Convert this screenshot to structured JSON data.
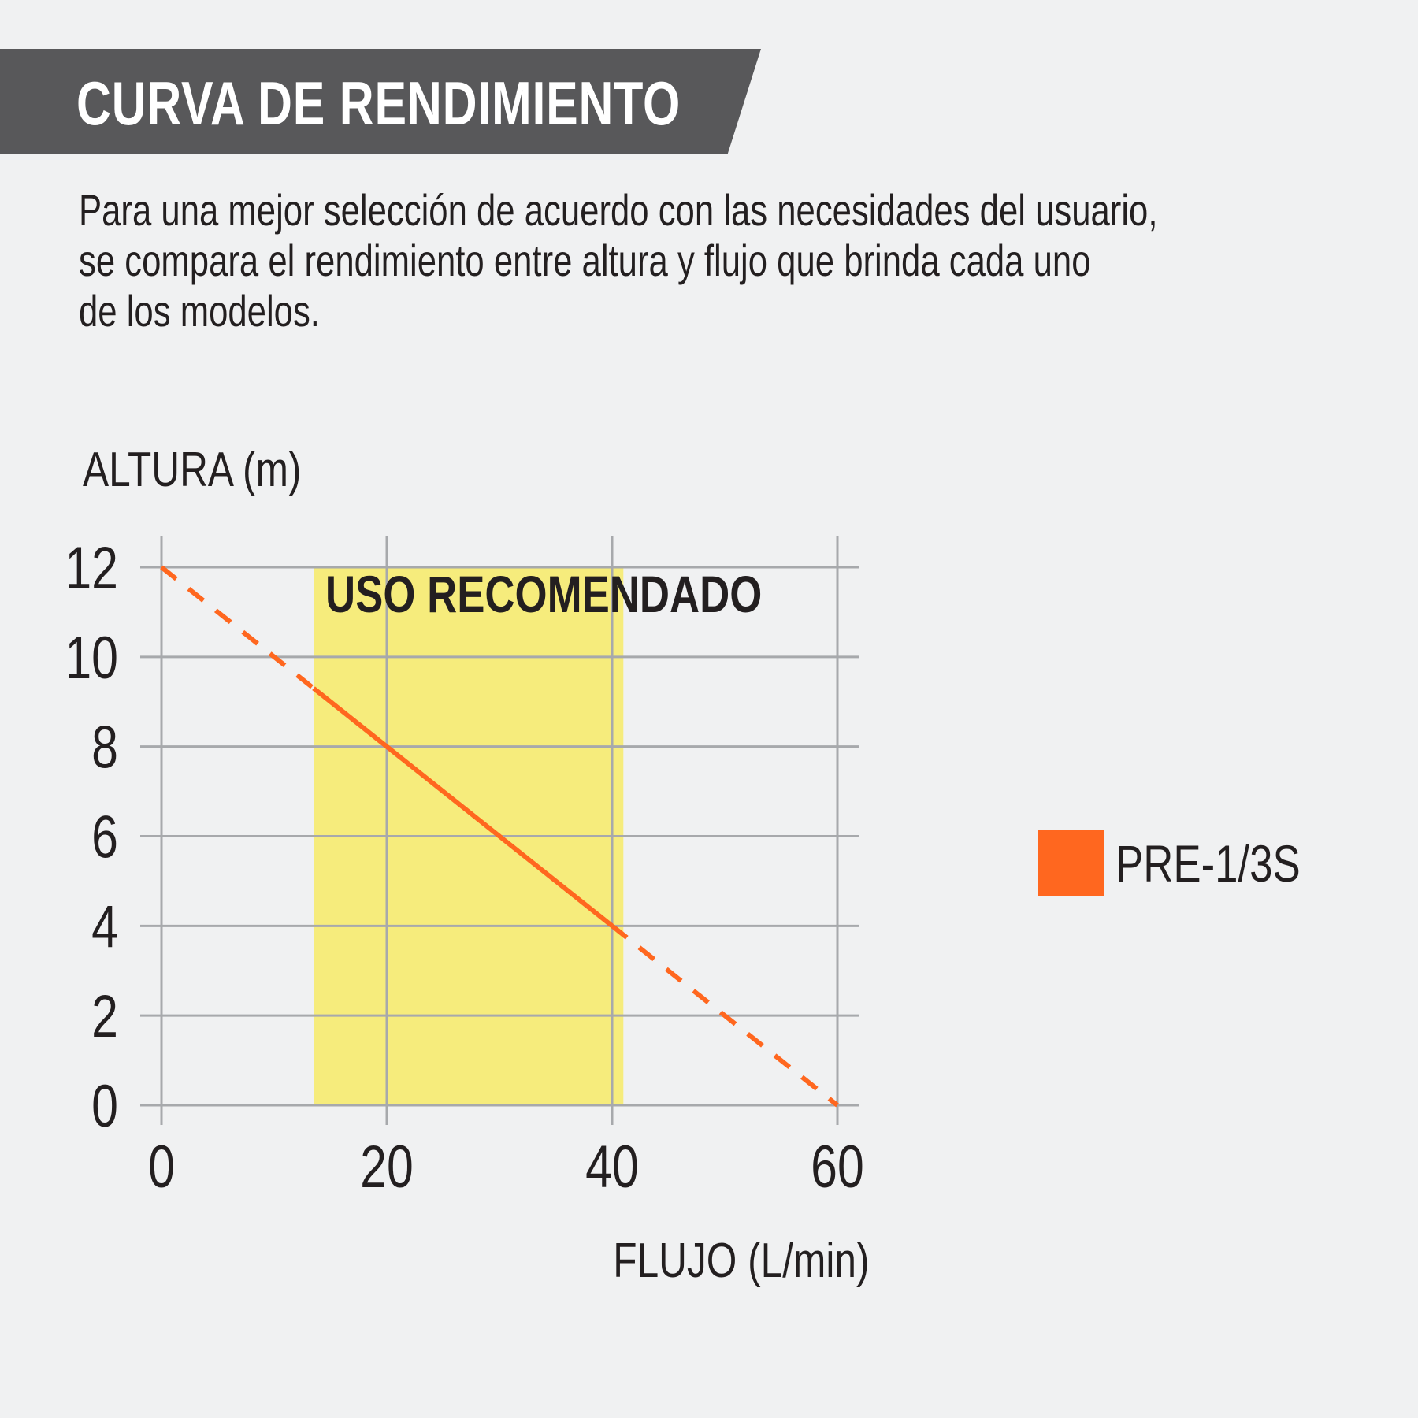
{
  "header": {
    "title": "CURVA DE RENDIMIENTO",
    "description": "Para una mejor selección de acuerdo con las necesidades del usuario,\nse compara el rendimiento entre altura y flujo que brinda cada uno\nde los modelos."
  },
  "chart_data": {
    "type": "line",
    "ylabel": "ALTURA (m)",
    "xlabel": "FLUJO (L/min)",
    "xlim": [
      0,
      60
    ],
    "ylim": [
      0,
      12
    ],
    "x_ticks": [
      0,
      20,
      40,
      60
    ],
    "y_ticks": [
      0,
      2,
      4,
      6,
      8,
      10,
      12
    ],
    "grid": true,
    "legend_position": "right",
    "recommended_zone": {
      "label": "USO RECOMENDADO",
      "x_range": [
        13.5,
        41
      ],
      "color": "#f6ec7c"
    },
    "series": [
      {
        "name": "PRE-1/3S",
        "color": "#ff671f",
        "points": [
          {
            "x": 0,
            "y": 12
          },
          {
            "x": 20,
            "y": 8
          },
          {
            "x": 40,
            "y": 4
          },
          {
            "x": 60,
            "y": 0
          }
        ],
        "solid_range": [
          13.5,
          40
        ],
        "dashed_outside_range": true
      }
    ]
  }
}
